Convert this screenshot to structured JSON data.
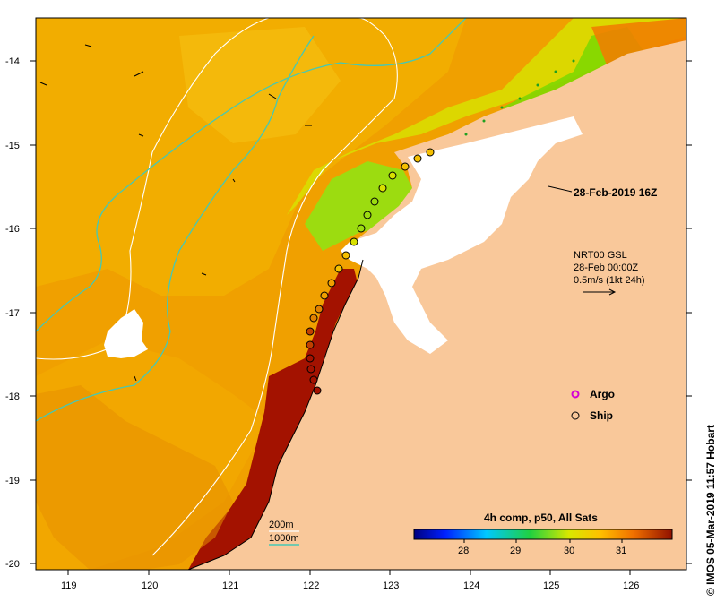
{
  "map": {
    "timestamp_label": "28-Feb-2019 16Z",
    "current_vector": {
      "line1": "NRT00 GSL",
      "line2": "28-Feb 00:00Z",
      "line3": "0.5m/s (1kt 24h)"
    },
    "symbols": {
      "argo_label": "Argo",
      "ship_label": "Ship",
      "argo_color": "#d400d4"
    },
    "contours": {
      "label_200": "200m",
      "label_1000": "1000m",
      "color_200": "#ffffff",
      "color_1000": "#46c8b4"
    },
    "colorbar": {
      "title": "4h comp, p50, All Sats",
      "ticks": [
        "28",
        "29",
        "30",
        "31"
      ]
    },
    "credit": "© IMOS 05-Mar-2019 11:57 Hobart",
    "axes": {
      "lon_ticks": [
        "119",
        "120",
        "121",
        "122",
        "123",
        "124",
        "125",
        "126"
      ],
      "lat_ticks": [
        "-14",
        "-15",
        "-16",
        "-17",
        "-18",
        "-19",
        "-20"
      ]
    },
    "colors": {
      "land": "#f9c89a",
      "sst_warm": "#a31200",
      "sst_mid": "#f0a000",
      "sst_cool": "#7fd800",
      "cloud": "#ffffff"
    }
  }
}
